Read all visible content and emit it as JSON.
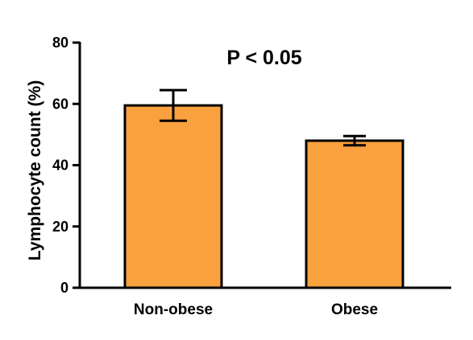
{
  "chart_data": {
    "type": "bar",
    "categories": [
      "Non-obese",
      "Obese"
    ],
    "values": [
      59.5,
      48
    ],
    "errors": [
      5,
      1.5
    ],
    "ylabel": "Lymphocyte count  (%)",
    "xlabel": "",
    "ylim": [
      0,
      80
    ],
    "yticks": [
      "0",
      "20",
      "40",
      "60",
      "80"
    ],
    "annotation": "P < 0.05",
    "grid": false,
    "bar_color": "#F9A03F",
    "edge_color": "#000000"
  }
}
